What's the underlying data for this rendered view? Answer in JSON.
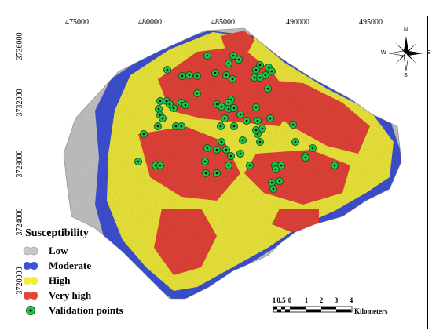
{
  "axes": {
    "x_ticks": [
      "475000",
      "480000",
      "485000",
      "490000",
      "495000"
    ],
    "y_ticks": [
      "3736000",
      "3732000",
      "3728000",
      "3724000",
      "3720000"
    ]
  },
  "legend": {
    "title": "Susceptibility",
    "items": [
      {
        "label": "Low",
        "color": "#c8c8c8"
      },
      {
        "label": "Moderate",
        "color": "#3f52d8"
      },
      {
        "label": "High",
        "color": "#f2ec3c"
      },
      {
        "label": "Very high",
        "color": "#e8443a"
      },
      {
        "label": "Validation points",
        "color": "#22c24b"
      }
    ]
  },
  "scale_bar": {
    "labels": [
      "1",
      "0.5",
      "0",
      "1",
      "2",
      "3",
      "4"
    ],
    "unit": "Kilometers"
  },
  "north_arrow": {
    "n": "N",
    "s": "S",
    "e": "E",
    "w": "W"
  },
  "colors": {
    "low": "#c8c8c8",
    "moderate": "#3f52d8",
    "high": "#f2ec3c",
    "very_high": "#e8443a",
    "validation": "#22c24b"
  },
  "validation_points_count": 78
}
